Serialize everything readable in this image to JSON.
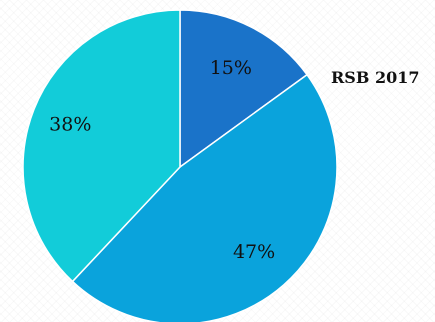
{
  "chart_data": {
    "type": "pie",
    "title": "RSB 2017",
    "start_angle_deg": 0,
    "direction": "clockwise",
    "slices": [
      {
        "label": "15%",
        "value": 15,
        "color": "#1a73c9"
      },
      {
        "label": "47%",
        "value": 47,
        "color": "#0aa3dc"
      },
      {
        "label": "38%",
        "value": 38,
        "color": "#12ccd9"
      }
    ],
    "slice_stroke_color": "#ffffff"
  }
}
